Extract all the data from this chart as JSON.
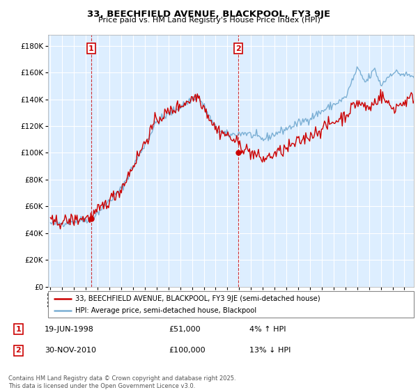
{
  "title": "33, BEECHFIELD AVENUE, BLACKPOOL, FY3 9JE",
  "subtitle": "Price paid vs. HM Land Registry's House Price Index (HPI)",
  "legend_line1": "33, BEECHFIELD AVENUE, BLACKPOOL, FY3 9JE (semi-detached house)",
  "legend_line2": "HPI: Average price, semi-detached house, Blackpool",
  "annotation1_date": "19-JUN-1998",
  "annotation1_price": "£51,000",
  "annotation1_hpi": "4% ↑ HPI",
  "annotation2_date": "30-NOV-2010",
  "annotation2_price": "£100,000",
  "annotation2_hpi": "13% ↓ HPI",
  "footer": "Contains HM Land Registry data © Crown copyright and database right 2025.\nThis data is licensed under the Open Government Licence v3.0.",
  "hpi_color": "#7bafd4",
  "price_color": "#cc0000",
  "annotation_box_color": "#cc0000",
  "bg_color": "#ddeeff",
  "sale1_year": 1998.46,
  "sale1_price": 51000,
  "sale2_year": 2010.92,
  "sale2_price": 100000
}
